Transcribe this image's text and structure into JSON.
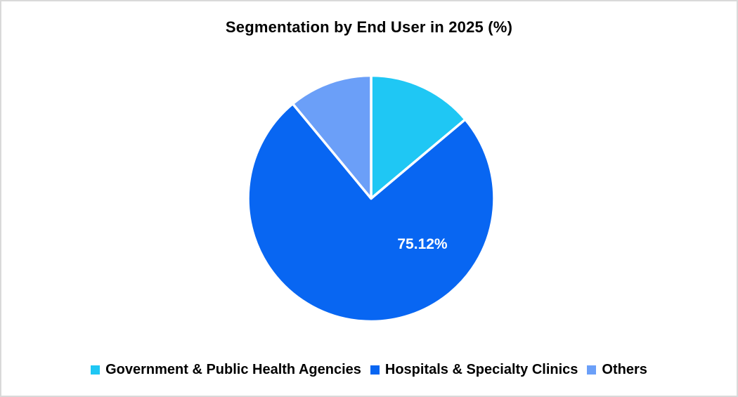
{
  "page": {
    "background_color": "#FFFFFF",
    "border_color": "#D9D9D9"
  },
  "chart_data": {
    "type": "pie",
    "title": "Segmentation by End User in 2025 (%)",
    "start_angle_deg": 0,
    "direction": "clockwise",
    "legend_position": "bottom",
    "separator_color": "#FFFFFF",
    "series": [
      {
        "name": "Government & Public Health Agencies",
        "value": 13.88,
        "color": "#1FC7F4",
        "data_label": ""
      },
      {
        "name": "Hospitals & Specialty Clinics",
        "value": 75.12,
        "color": "#0866F2",
        "data_label": "75.12%"
      },
      {
        "name": "Others",
        "value": 11.0,
        "color": "#6B9FF8",
        "data_label": ""
      }
    ]
  }
}
